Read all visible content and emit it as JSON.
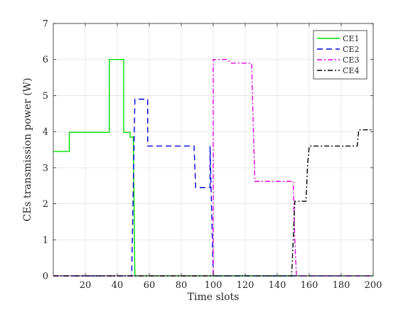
{
  "chart_data": {
    "type": "line",
    "title": "",
    "xlabel": "Time slots",
    "ylabel": "CEs transmission power (W)",
    "xlim": [
      0,
      200
    ],
    "ylim": [
      0,
      7
    ],
    "xticks": [
      20,
      40,
      60,
      80,
      100,
      120,
      140,
      160,
      180,
      200
    ],
    "yticks": [
      0,
      1,
      2,
      3,
      4,
      5,
      6,
      7
    ],
    "grid": true,
    "legend_position": "top-right",
    "series": [
      {
        "name": "CE1",
        "color": "#00e000",
        "dash": "solid",
        "x": [
          0,
          10,
          10,
          35,
          35,
          44,
          44,
          48,
          48,
          50,
          51,
          52,
          200
        ],
        "y": [
          3.45,
          3.45,
          3.98,
          3.98,
          6.0,
          6.0,
          3.98,
          3.98,
          3.85,
          3.85,
          0,
          0,
          0
        ]
      },
      {
        "name": "CE2",
        "color": "#0000e0",
        "dash": "dashed",
        "x": [
          0,
          49,
          51,
          51,
          56,
          59,
          59,
          88,
          89,
          96,
          96,
          98,
          98,
          100,
          101,
          200
        ],
        "y": [
          0,
          0,
          4.9,
          4.9,
          4.9,
          4.9,
          3.6,
          3.6,
          2.45,
          2.45,
          2.45,
          2.45,
          3.6,
          0,
          0,
          0
        ]
      },
      {
        "name": "CE3",
        "color": "#e000e0",
        "dash": "dashdot",
        "x": [
          0,
          99,
          100,
          100,
          109,
          111,
          124,
          125,
          126,
          150,
          151,
          152,
          200
        ],
        "y": [
          0,
          0,
          0.05,
          6.0,
          6.0,
          5.9,
          5.9,
          4.2,
          2.62,
          2.62,
          1.0,
          0,
          0
        ]
      },
      {
        "name": "CE4",
        "color": "#000000",
        "dash": "dashdot",
        "x": [
          0,
          149,
          150,
          151,
          151,
          158,
          159,
          160,
          161,
          190,
          191,
          192,
          200
        ],
        "y": [
          0,
          0,
          1.0,
          2.07,
          2.07,
          2.07,
          3.1,
          3.6,
          3.6,
          3.6,
          4.05,
          4.05,
          4.05
        ]
      }
    ]
  }
}
